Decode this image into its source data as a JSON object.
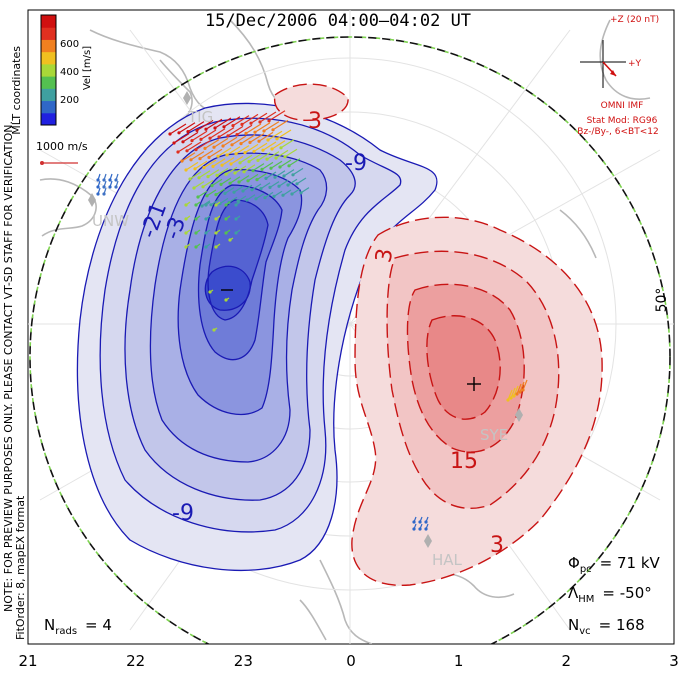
{
  "title": "15/Dec/2006 04:00–04:02 UT",
  "side_note_line1": "MLT coordinates",
  "side_note_line2": "NOTE: FOR PREVIEW PURPOSES ONLY. PLEASE CONTACT VT-SD STAFF FOR VERIFICATION.",
  "side_note_line3": "FitOrder: 8, mapEX format",
  "colorbar": {
    "label": "Vel [m/s]",
    "ticks": [
      "200",
      "400",
      "600"
    ],
    "colors": [
      "#2020e0",
      "#2f67c8",
      "#3fa0a0",
      "#54c050",
      "#a8d838",
      "#f0c020",
      "#f08020",
      "#e03020",
      "#d01010"
    ]
  },
  "reference_vector": {
    "label": "1000 m/s",
    "color": "#d03030"
  },
  "imf": {
    "z_label": "+Z (20 nT)",
    "y_label": "+Y",
    "source": "OMNI IMF",
    "model": "Stat Mod: RG96",
    "condition": "Bz-/By-, 6<BT<12",
    "color": "#d01010"
  },
  "latitude_label": "50°",
  "stations": [
    "TIG",
    "UNW",
    "SYE",
    "HAL"
  ],
  "contour_labels": {
    "negative": [
      "-9",
      "-21",
      "-3",
      "-9"
    ],
    "positive": [
      "3",
      "3",
      "15",
      "3"
    ]
  },
  "stats": {
    "phi_label": "Φ",
    "phi_sub": "pc",
    "phi_value": "= 71 kV",
    "lambda_label": "Λ",
    "lambda_sub": "HM",
    "lambda_value": "= -50°",
    "nvc_label": "N",
    "nvc_sub": "vc",
    "nvc_value": "= 168",
    "nrads_label": "N",
    "nrads_sub": "rads",
    "nrads_value": "= 4"
  },
  "chart_data": {
    "type": "polar-map",
    "xlabel": "",
    "x_ticks": [
      "21",
      "22",
      "23",
      "0",
      "1",
      "2",
      "3"
    ],
    "potential_cells": [
      {
        "sign": "negative",
        "center_mlt": "22.5",
        "contour_levels_kV": [
          -3,
          -9,
          -15,
          -21,
          -27,
          -33,
          -39,
          -45,
          -51
        ]
      },
      {
        "sign": "positive",
        "center_mlt": "1.2",
        "contour_levels_kV": [
          3,
          9,
          15,
          21
        ]
      }
    ],
    "cross_polar_cap_potential_kV": 71,
    "heppner_maynard_boundary_deg": -50,
    "vector_count": 168,
    "radar_count": 4
  }
}
